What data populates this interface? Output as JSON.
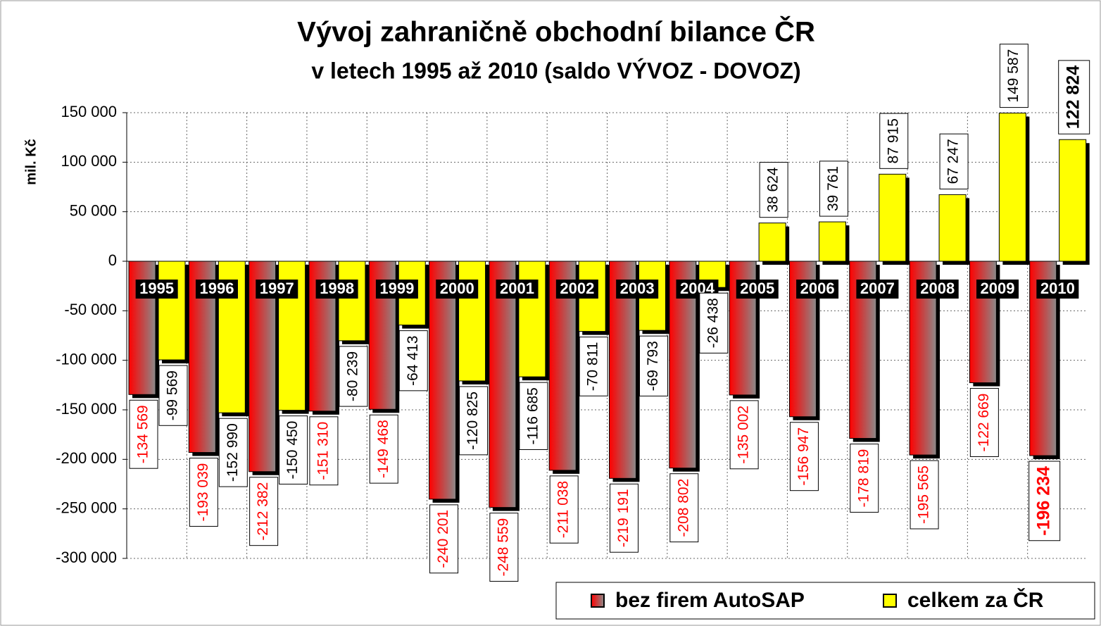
{
  "chart_data": {
    "type": "bar",
    "title": "Vývoj zahraničně obchodní bilance ČR",
    "subtitle": "v letech 1995 až 2010 (saldo VÝVOZ - DOVOZ)",
    "y_label": "mil. Kč",
    "categories": [
      "1995",
      "1996",
      "1997",
      "1998",
      "1999",
      "2000",
      "2001",
      "2002",
      "2003",
      "2004",
      "2005",
      "2006",
      "2007",
      "2008",
      "2009",
      "2010"
    ],
    "series": [
      {
        "name": "bez firem AutoSAP",
        "color": "#ff0000",
        "values": [
          -134569,
          -193039,
          -212382,
          -151310,
          -149468,
          -240201,
          -248559,
          -211038,
          -219191,
          -208802,
          -135002,
          -156947,
          -178819,
          -195565,
          -122669,
          -196234
        ],
        "value_labels": [
          "-134 569",
          "-193 039",
          "-212 382",
          "-151 310",
          "-149 468",
          "-240 201",
          "-248 559",
          "-211 038",
          "-219 191",
          "-208 802",
          "-135 002",
          "-156 947",
          "-178 819",
          "-195 565",
          "-122 669",
          "-196 234"
        ]
      },
      {
        "name": "celkem za ČR",
        "color": "#ffff00",
        "values": [
          -99569,
          -152990,
          -150450,
          -80239,
          -64413,
          -120825,
          -116685,
          -70811,
          -69793,
          -26438,
          38624,
          39761,
          87915,
          67247,
          149587,
          122824
        ],
        "value_labels": [
          "-99 569",
          "-152 990",
          "-150 450",
          "-80 239",
          "-64 413",
          "-120 825",
          "-116 685",
          "-70 811",
          "-69 793",
          "-26 438",
          "38 624",
          "39 761",
          "87 915",
          "67 247",
          "149 587",
          "122 824"
        ]
      }
    ],
    "ylim": [
      -300000,
      150000
    ],
    "yticks": [
      {
        "value": 150000,
        "label": "150 000"
      },
      {
        "value": 100000,
        "label": "100 000"
      },
      {
        "value": 50000,
        "label": "50 000"
      },
      0,
      {
        "value": -50000,
        "label": "-50 000"
      },
      {
        "value": -100000,
        "label": "-100 000"
      },
      {
        "value": -150000,
        "label": "-150 000"
      },
      {
        "value": -200000,
        "label": "-200 000"
      },
      {
        "value": -250000,
        "label": "-250 000"
      },
      {
        "value": -300000,
        "label": "-300 000"
      }
    ],
    "grid": true,
    "legend": "bottom-right"
  }
}
